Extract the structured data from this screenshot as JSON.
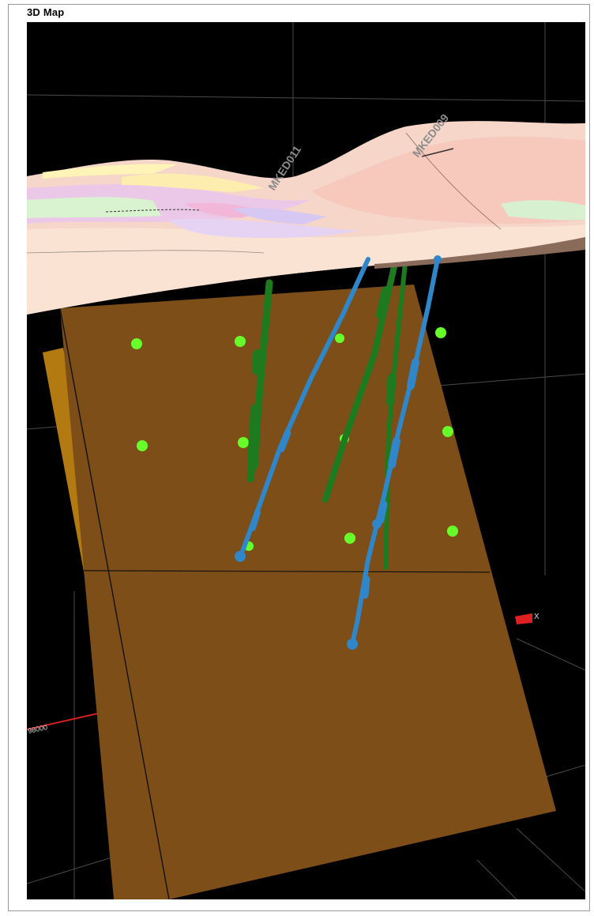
{
  "window": {
    "title": "3D Map"
  },
  "scene": {
    "drillholes": [
      {
        "label": "MKED011",
        "color": "#1f77b4"
      },
      {
        "label": "MKED009",
        "color": "#1f77b4"
      }
    ],
    "axis_labels": {
      "x_axis": "X",
      "northing_tick": "98000"
    },
    "colors": {
      "background": "#000000",
      "section_plane": "#7a4a13",
      "section_plane_edge": "#b27a12",
      "terrain_surface": "#f7d9c9",
      "drillhole_blue": "#2f86c9",
      "drillhole_green": "#1e7a1e",
      "sample_points": "#66ff2a",
      "axis_marker": "#e02020"
    }
  }
}
